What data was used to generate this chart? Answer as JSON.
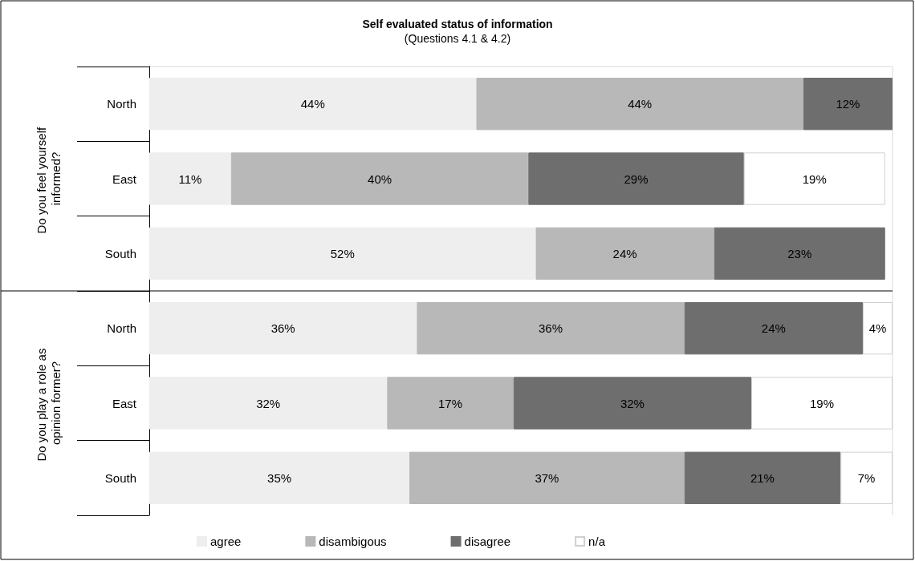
{
  "chart_data": {
    "type": "bar",
    "orientation": "horizontal",
    "stacked": true,
    "title": "Self evaluated status of information",
    "subtitle": "(Questions 4.1 & 4.2)",
    "categories": [
      "North",
      "East",
      "South",
      "North",
      "East",
      "South"
    ],
    "annotations": [
      "Do you feel yourself informed?",
      "Do you play a role as opinion former?"
    ],
    "xlim": [
      0,
      100
    ],
    "tick_labels": "y",
    "grid": false,
    "legend": "bottom",
    "series": [
      {
        "name": "agree",
        "color": "#eeeeee",
        "values": [
          44,
          11,
          52,
          36,
          32,
          35
        ],
        "value_labels": [
          "44%",
          "11%",
          "52%",
          "36%",
          "32%",
          "35%"
        ]
      },
      {
        "name": "disambigous",
        "color": "#b8b8b8",
        "values": [
          44,
          40,
          24,
          36,
          17,
          37
        ],
        "value_labels": [
          "44%",
          "40%",
          "24%",
          "36%",
          "17%",
          "37%"
        ]
      },
      {
        "name": "disagree",
        "color": "#6e6e6e",
        "values": [
          12,
          29,
          23,
          24,
          32,
          21
        ],
        "value_labels": [
          "12%",
          "29%",
          "23%",
          "24%",
          "32%",
          "21%"
        ]
      },
      {
        "name": "n/a",
        "color": "#ffffff",
        "values": [
          null,
          19,
          null,
          4,
          19,
          7
        ],
        "value_labels": [
          null,
          "19%",
          null,
          "4%",
          "19%",
          "7%"
        ]
      }
    ]
  }
}
